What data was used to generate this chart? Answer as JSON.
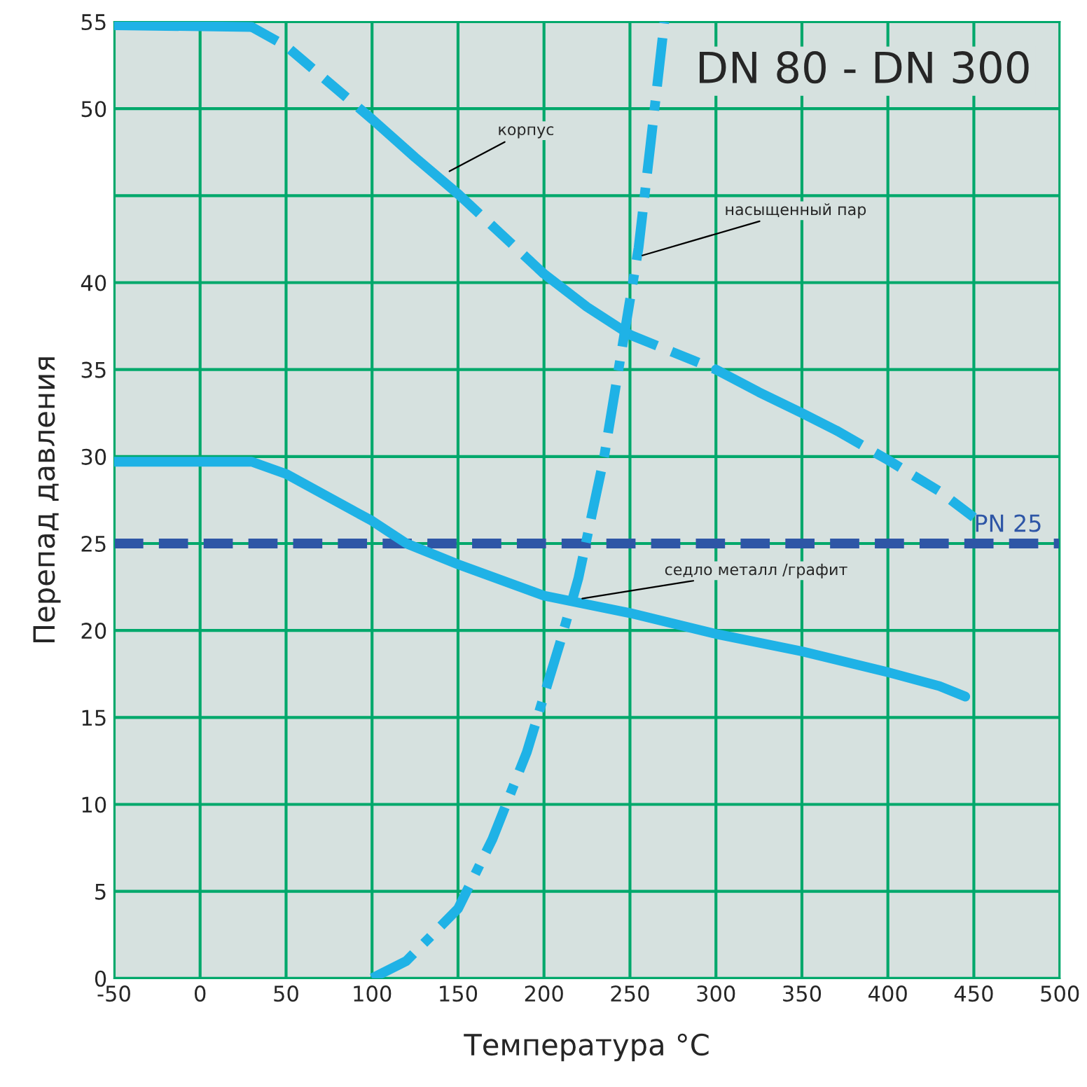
{
  "chart_data": {
    "type": "line",
    "title": "DN 80 - DN 300",
    "xlabel": "Температура °C",
    "ylabel": "Перепад давления",
    "xlim": [
      -50,
      500
    ],
    "xticks": [
      -50,
      0,
      50,
      100,
      150,
      200,
      250,
      300,
      350,
      400,
      450,
      500
    ],
    "ylim": [
      0,
      55
    ],
    "yticks": [
      0,
      5,
      10,
      15,
      20,
      25,
      30,
      35,
      40,
      {
        "value": 45,
        "label": null
      },
      50,
      55
    ],
    "grid": true,
    "legend": false,
    "marker": "none",
    "series": [
      {
        "color": "#1fb2e6",
        "line_style": "solid",
        "x": [
          -50,
          30
        ],
        "values": [
          54.8,
          54.7
        ]
      },
      {
        "color": "#1fb2e6",
        "line_style": "dashed",
        "x": [
          30,
          50,
          100
        ],
        "values": [
          54.7,
          53.6,
          49.4
        ]
      },
      {
        "color": "#1fb2e6",
        "line_style": "solid",
        "x": [
          100,
          125,
          150
        ],
        "values": [
          49.4,
          47.2,
          45.1
        ]
      },
      {
        "color": "#1fb2e6",
        "line_style": "dashed",
        "x": [
          150,
          175,
          200
        ],
        "values": [
          45.1,
          42.8,
          40.5
        ]
      },
      {
        "color": "#1fb2e6",
        "line_style": "solid",
        "x": [
          200,
          225,
          250
        ],
        "values": [
          40.5,
          38.6,
          37
        ]
      },
      {
        "color": "#1fb2e6",
        "line_style": "dashed",
        "x": [
          250,
          275,
          300
        ],
        "values": [
          37,
          36,
          35
        ]
      },
      {
        "color": "#1fb2e6",
        "line_style": "solid",
        "x": [
          300,
          325,
          350,
          370
        ],
        "values": [
          35,
          33.7,
          32.5,
          31.5
        ]
      },
      {
        "color": "#1fb2e6",
        "line_style": "dashed",
        "x": [
          370,
          400,
          430,
          450
        ],
        "values": [
          31.5,
          29.8,
          28,
          26.5
        ]
      },
      {
        "color": "#1fb2e6",
        "line_style": "solid",
        "x": [
          -50,
          30,
          50,
          100,
          120,
          150,
          200,
          250,
          300,
          350,
          400,
          430,
          445
        ],
        "values": [
          29.7,
          29.7,
          29,
          26.3,
          25,
          23.8,
          22,
          21,
          19.8,
          18.8,
          17.6,
          16.8,
          16.2
        ]
      },
      {
        "color": "#1fb2e6",
        "line_style": "dashdot",
        "x": [
          100,
          120,
          150,
          170,
          190,
          210,
          220,
          235,
          245,
          255,
          262,
          270
        ],
        "values": [
          0,
          1,
          4,
          8,
          13,
          19.5,
          23,
          30,
          36,
          42,
          48,
          55
        ]
      }
    ],
    "ref_lines": [
      {
        "axis": "y",
        "value": 25,
        "label": "PN 25",
        "color": "#2e56a6",
        "line_style": "dashed"
      }
    ],
    "annotations": [
      {
        "text": "корпус",
        "x": 143,
        "y": 46.3
      },
      {
        "text": "насыщенный пар",
        "x": 255,
        "y": 41.5
      },
      {
        "text": "седло металл /графит",
        "x": 220,
        "y": 21.8
      }
    ]
  }
}
